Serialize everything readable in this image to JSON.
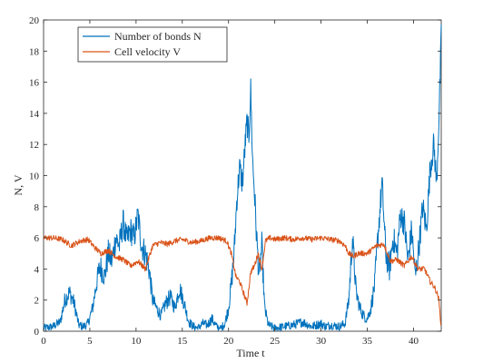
{
  "chart_data": {
    "type": "line",
    "title": "",
    "xlabel": "Time t",
    "ylabel": "N, V",
    "xlim": [
      0,
      43
    ],
    "ylim": [
      0,
      20
    ],
    "xticks": [
      "0",
      "5",
      "10",
      "15",
      "20",
      "25",
      "30",
      "35",
      "40"
    ],
    "yticks": [
      "0",
      "2",
      "4",
      "6",
      "8",
      "10",
      "12",
      "14",
      "16",
      "18",
      "20"
    ],
    "grid": false,
    "legend": "top-left",
    "series": [
      {
        "name": "Number of bonds N",
        "color": "#0072bd",
        "x": [
          0,
          1,
          1.8,
          2.3,
          2.8,
          3.3,
          3.8,
          4.3,
          4.8,
          5.3,
          5.7,
          6.1,
          6.6,
          7.0,
          7.4,
          7.8,
          8.2,
          8.6,
          9.0,
          9.4,
          9.8,
          10.2,
          10.6,
          11.0,
          11.4,
          11.8,
          12.2,
          12.7,
          13.2,
          13.7,
          14.2,
          14.7,
          15.2,
          15.7,
          16.2,
          16.7,
          17.2,
          17.7,
          18.2,
          18.7,
          19.2,
          19.6,
          20.0,
          20.3,
          20.6,
          20.9,
          21.2,
          21.5,
          21.8,
          22.0,
          22.2,
          22.4,
          22.6,
          22.8,
          23.0,
          23.3,
          23.6,
          23.9,
          24.3,
          25,
          26,
          27,
          28,
          29,
          30,
          30.5,
          31,
          32,
          32.6,
          33.0,
          33.4,
          33.8,
          34.2,
          34.6,
          35.0,
          35.4,
          35.8,
          36.2,
          36.6,
          37.0,
          37.4,
          37.8,
          38.2,
          38.6,
          39.0,
          39.4,
          39.8,
          40.2,
          40.6,
          41.0,
          41.4,
          41.8,
          42.2,
          42.5,
          42.8,
          43
        ],
        "y": [
          0.2,
          0.3,
          0.6,
          2.0,
          2.5,
          1.8,
          0.4,
          0.3,
          0.5,
          1.5,
          3.0,
          4.2,
          3.5,
          5.0,
          4.5,
          6.0,
          5.5,
          7.0,
          5.8,
          6.5,
          6.0,
          7.5,
          5.5,
          5.0,
          4.0,
          2.0,
          1.5,
          1.0,
          1.8,
          2.2,
          1.5,
          2.8,
          1.8,
          0.6,
          0.3,
          0.2,
          0.5,
          0.4,
          0.8,
          0.3,
          0.2,
          0.5,
          1.5,
          3.0,
          5.0,
          8.5,
          10.5,
          9.5,
          12.0,
          13.5,
          12.5,
          15.5,
          11.0,
          9.0,
          6.5,
          3.5,
          5.5,
          1.5,
          0.4,
          0.2,
          0.3,
          0.4,
          0.6,
          0.3,
          0.5,
          0.3,
          0.4,
          0.3,
          0.5,
          2.0,
          6.0,
          2.5,
          1.5,
          1.0,
          0.8,
          1.5,
          3.0,
          6.5,
          9.5,
          5.0,
          4.0,
          6.0,
          5.0,
          7.5,
          7.0,
          4.5,
          6.5,
          3.5,
          5.5,
          8.0,
          6.5,
          10.5,
          12.0,
          9.5,
          14.5,
          19.0
        ]
      },
      {
        "name": "Cell velocity V",
        "color": "#d95319",
        "x": [
          0,
          1,
          2,
          3,
          4,
          4.8,
          5.5,
          6.2,
          7.0,
          7.8,
          8.6,
          9.4,
          10.2,
          11.0,
          11.8,
          12.6,
          13.4,
          14.2,
          15.0,
          16.0,
          17.0,
          18.0,
          19.0,
          19.8,
          20.3,
          20.8,
          21.2,
          21.6,
          22.0,
          22.4,
          22.8,
          23.2,
          23.6,
          24.0,
          24.5,
          25,
          26,
          27,
          28,
          29,
          30,
          31,
          32,
          32.6,
          33.0,
          33.5,
          34,
          35,
          36,
          36.8,
          37.5,
          38.2,
          39,
          39.8,
          40.5,
          41.2,
          41.8,
          42.3,
          42.7,
          43
        ],
        "y": [
          6.0,
          6.0,
          5.9,
          5.5,
          5.8,
          5.9,
          5.4,
          5.0,
          5.2,
          4.8,
          4.6,
          4.2,
          4.5,
          4.0,
          5.5,
          5.7,
          5.6,
          5.8,
          5.9,
          5.7,
          5.8,
          6.0,
          6.0,
          5.8,
          5.0,
          3.5,
          3.2,
          2.5,
          1.8,
          3.8,
          4.2,
          5.0,
          4.0,
          5.8,
          6.0,
          5.9,
          6.0,
          5.9,
          6.0,
          5.9,
          6.0,
          5.9,
          5.8,
          5.5,
          5.0,
          4.8,
          5.0,
          5.0,
          5.5,
          5.6,
          4.5,
          4.6,
          4.2,
          4.8,
          4.0,
          4.0,
          3.2,
          2.8,
          2.2,
          0.3
        ]
      }
    ]
  }
}
